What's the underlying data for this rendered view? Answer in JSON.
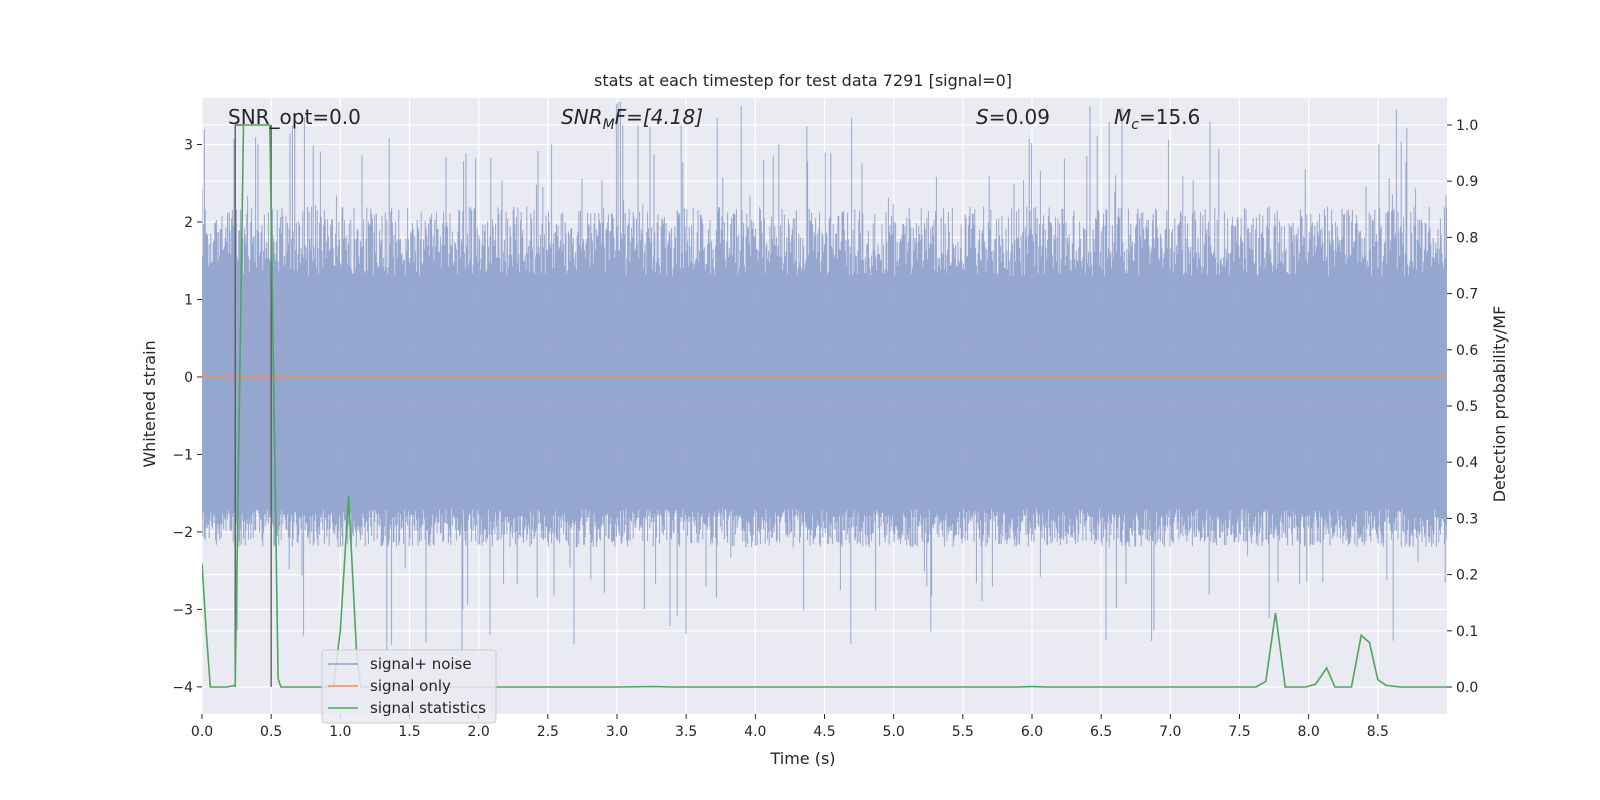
{
  "chart_data": {
    "type": "line",
    "title": "stats at each timestep for test data 7291 [signal=0]",
    "xlabel": "Time (s)",
    "ylabel_left": "Whitened strain",
    "ylabel_right": "Detection probability/MF",
    "xlim": [
      0.0,
      9.0
    ],
    "ylim_left": [
      -4.35,
      3.6
    ],
    "ylim_right": [
      -0.048,
      1.048
    ],
    "x_ticks": [
      "0.0",
      "0.5",
      "1.0",
      "1.5",
      "2.0",
      "2.5",
      "3.0",
      "3.5",
      "4.0",
      "4.5",
      "5.0",
      "5.5",
      "6.0",
      "6.5",
      "7.0",
      "7.5",
      "8.0",
      "8.5"
    ],
    "y_ticks_left": [
      "3",
      "2",
      "1",
      "0",
      "−1",
      "−2",
      "−3",
      "−4"
    ],
    "y_ticks_right": [
      "1.0",
      "0.9",
      "0.8",
      "0.7",
      "0.6",
      "0.5",
      "0.4",
      "0.3",
      "0.2",
      "0.1",
      "0.0"
    ],
    "grid": true,
    "legend_position": "lower-left",
    "colors": {
      "noise": "#8da0cb",
      "signal": "#e8916c",
      "stats": "#4ea55c",
      "vline": "#555555",
      "background": "#eaeaf2",
      "grid": "#ffffff"
    },
    "annotations": {
      "snr_opt": "SNR_opt=0.0",
      "snr_mf_prefix": "SNR",
      "snr_mf_sub": "M",
      "snr_mf_suffix": "F=[4.18]",
      "s_prefix": "S",
      "s_suffix": "=0.09",
      "mc_prefix": "M",
      "mc_sub": "c",
      "mc_suffix": "=15.6"
    },
    "vertical_lines_x": [
      0.24,
      0.5
    ],
    "series": [
      {
        "name": "signal+ noise",
        "axis": "left",
        "description_values": "dense whitened noise, envelope approx ±2 with spikes to 3.5 / -3.6",
        "envelope_upper": 1.3,
        "envelope_lower": -1.7,
        "spike_max": 3.55,
        "spike_min": -3.6
      },
      {
        "name": "signal only",
        "axis": "left",
        "x": [
          0.0,
          9.0
        ],
        "y": [
          0.0,
          0.0
        ]
      },
      {
        "name": "signal statistics",
        "axis": "right",
        "x": [
          0.0,
          0.03,
          0.06,
          0.18,
          0.24,
          0.3,
          0.49,
          0.55,
          0.57,
          0.6,
          0.95,
          1.0,
          1.06,
          1.12,
          1.15,
          3.0,
          3.27,
          3.4,
          5.9,
          6.0,
          6.1,
          7.62,
          7.69,
          7.76,
          7.83,
          7.98,
          8.05,
          8.13,
          8.19,
          8.31,
          8.38,
          8.44,
          8.5,
          8.56,
          8.66,
          9.0
        ],
        "y": [
          0.22,
          0.1,
          0.0,
          0.0,
          0.003,
          1.0,
          1.0,
          0.015,
          0.0,
          0.0,
          0.0,
          0.1,
          0.34,
          0.05,
          0.0,
          0.0,
          0.001,
          0.0,
          0.0,
          0.001,
          0.0,
          0.0,
          0.01,
          0.132,
          0.0,
          0.0,
          0.005,
          0.034,
          0.0,
          0.0,
          0.092,
          0.079,
          0.013,
          0.003,
          0.0,
          0.0
        ]
      }
    ]
  }
}
